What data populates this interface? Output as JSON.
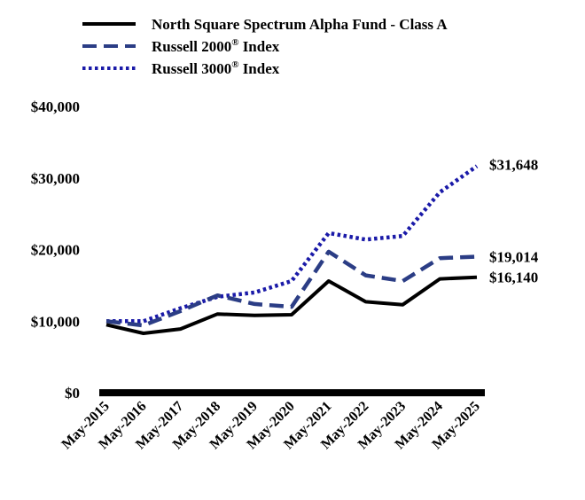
{
  "chart_data": {
    "type": "line",
    "title": "",
    "xlabel": "",
    "ylabel": "",
    "categories": [
      "May-2015",
      "May-2016",
      "May-2017",
      "May-2018",
      "May-2019",
      "May-2020",
      "May-2021",
      "May-2022",
      "May-2023",
      "May-2024",
      "May-2025"
    ],
    "ylim": [
      0,
      40000
    ],
    "y_ticks": [
      {
        "value": 0,
        "label": "$0"
      },
      {
        "value": 10000,
        "label": "$10,000"
      },
      {
        "value": 20000,
        "label": "$20,000"
      },
      {
        "value": 30000,
        "label": "$30,000"
      },
      {
        "value": 40000,
        "label": "$40,000"
      }
    ],
    "grid": false,
    "legend_position": "top",
    "series": [
      {
        "name": "North Square Spectrum Alpha Fund - Class A",
        "color": "#000000",
        "style": "solid",
        "values": [
          9500,
          8300,
          8900,
          11000,
          10800,
          10900,
          15600,
          12700,
          12300,
          15900,
          16140
        ],
        "end_label": "$16,140"
      },
      {
        "name": "Russell 2000",
        "name_sup": "®",
        "name_suffix": " Index",
        "color": "#2b3d85",
        "style": "dashed",
        "values": [
          10000,
          9400,
          11400,
          13600,
          12400,
          12000,
          19700,
          16400,
          15600,
          18800,
          19014
        ],
        "end_label": "$19,014"
      },
      {
        "name": "Russell 3000",
        "name_sup": "®",
        "name_suffix": " Index",
        "color": "#1a1aa8",
        "style": "dotted",
        "values": [
          10000,
          10000,
          11800,
          13400,
          14000,
          15600,
          22300,
          21400,
          21900,
          28000,
          31648
        ],
        "end_label": "$31,648"
      }
    ]
  }
}
